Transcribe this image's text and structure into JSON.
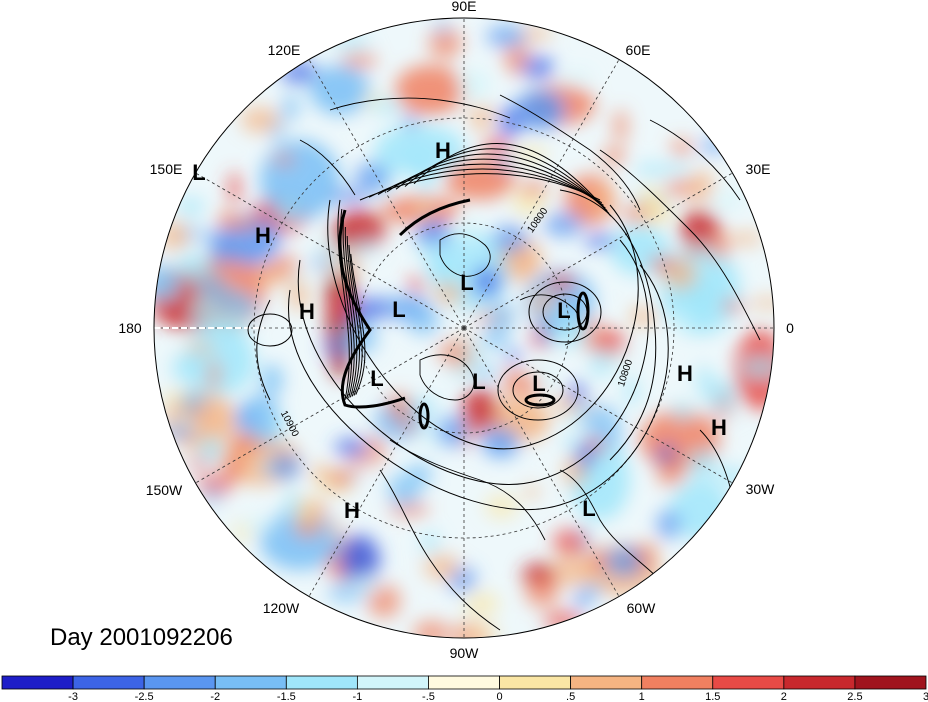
{
  "title": "Day 2001092206",
  "map": {
    "projection": "north polar stereographic",
    "longitude_labels": [
      "90E",
      "60E",
      "30E",
      "0",
      "30W",
      "60W",
      "90W",
      "120W",
      "150W",
      "180",
      "150E",
      "120E"
    ],
    "pressure_centers": [
      "L",
      "H",
      "H",
      "H",
      "L",
      "L",
      "L",
      "L",
      "L",
      "L",
      "H",
      "H",
      "H",
      "L"
    ],
    "contour_labels": [
      "10800",
      "10800",
      "10900"
    ]
  },
  "colorbar": {
    "tick_labels": [
      "-3",
      "-2.5",
      "-2",
      "-1.5",
      "-1",
      "-.5",
      "0",
      ".5",
      "1",
      "1.5",
      "2",
      "2.5",
      "3"
    ],
    "colors": [
      "#1e1ec8",
      "#3c64e6",
      "#5a96f0",
      "#78bef5",
      "#a0e6fa",
      "#d2f5fa",
      "#fffae0",
      "#fae6a5",
      "#f5b482",
      "#f08060",
      "#e84a46",
      "#c8282d",
      "#a0141e"
    ]
  }
}
